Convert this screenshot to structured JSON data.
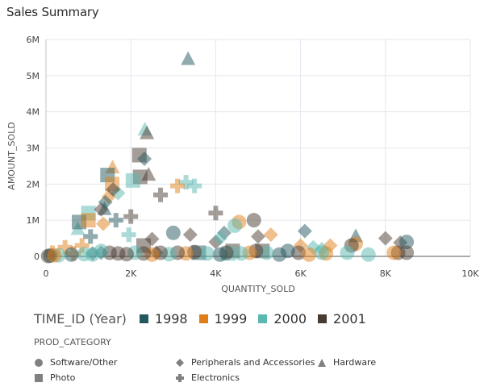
{
  "title": "Sales Summary",
  "chart_data": {
    "type": "scatter",
    "title": "Sales Summary",
    "xlabel": "QUANTITY_SOLD",
    "ylabel": "AMOUNT_SOLD",
    "xlim": [
      0,
      10000
    ],
    "ylim": [
      0,
      6000000
    ],
    "xticks": [
      0,
      2000,
      4000,
      6000,
      8000,
      10000
    ],
    "xtick_labels": [
      "0",
      "2K",
      "4K",
      "6K",
      "8K",
      "10K"
    ],
    "yticks": [
      0,
      1000000,
      2000000,
      3000000,
      4000000,
      5000000,
      6000000
    ],
    "ytick_labels": [
      "0",
      "1M",
      "2M",
      "3M",
      "4M",
      "5M",
      "6M"
    ],
    "grid": true,
    "color_legend": {
      "title": "TIME_ID (Year)",
      "items": [
        {
          "label": "1998",
          "color": "#23585e"
        },
        {
          "label": "1999",
          "color": "#e07f1a"
        },
        {
          "label": "2000",
          "color": "#5ab8b0"
        },
        {
          "label": "2001",
          "color": "#4a3b31"
        }
      ]
    },
    "shape_legend": {
      "title": "PROD_CATEGORY",
      "items": [
        {
          "label": "Software/Other",
          "shape": "circle"
        },
        {
          "label": "Peripherals and Accessories",
          "shape": "diamond"
        },
        {
          "label": "Hardware",
          "shape": "triangle"
        },
        {
          "label": "Photo",
          "shape": "square"
        },
        {
          "label": "Electronics",
          "shape": "cross"
        }
      ]
    },
    "legend_position": "bottom",
    "points": [
      {
        "x": 3350,
        "y": 5450000,
        "year": "1998",
        "category": "Hardware"
      },
      {
        "x": 2330,
        "y": 3500000,
        "year": "2000",
        "category": "Hardware"
      },
      {
        "x": 2380,
        "y": 3400000,
        "year": "2001",
        "category": "Hardware"
      },
      {
        "x": 1570,
        "y": 2450000,
        "year": "1999",
        "category": "Hardware"
      },
      {
        "x": 2420,
        "y": 2250000,
        "year": "2001",
        "category": "Hardware"
      },
      {
        "x": 1380,
        "y": 1300000,
        "year": "1998",
        "category": "Hardware"
      },
      {
        "x": 750,
        "y": 750000,
        "year": "2000",
        "category": "Hardware"
      },
      {
        "x": 7300,
        "y": 550000,
        "year": "1998",
        "category": "Hardware"
      },
      {
        "x": 2200,
        "y": 2800000,
        "year": "2001",
        "category": "Photo"
      },
      {
        "x": 2220,
        "y": 2200000,
        "year": "2001",
        "category": "Photo"
      },
      {
        "x": 2050,
        "y": 2100000,
        "year": "2000",
        "category": "Photo"
      },
      {
        "x": 1450,
        "y": 2250000,
        "year": "1998",
        "category": "Photo"
      },
      {
        "x": 1560,
        "y": 2000000,
        "year": "1999",
        "category": "Photo"
      },
      {
        "x": 1000,
        "y": 1200000,
        "year": "2000",
        "category": "Photo"
      },
      {
        "x": 780,
        "y": 950000,
        "year": "1998",
        "category": "Photo"
      },
      {
        "x": 1000,
        "y": 1000000,
        "year": "1999",
        "category": "Photo"
      },
      {
        "x": 2300,
        "y": 300000,
        "year": "2001",
        "category": "Photo"
      },
      {
        "x": 4400,
        "y": 150000,
        "year": "2001",
        "category": "Photo"
      },
      {
        "x": 5100,
        "y": 150000,
        "year": "2001",
        "category": "Photo"
      },
      {
        "x": 4300,
        "y": 80000,
        "year": "2000",
        "category": "Photo"
      },
      {
        "x": 3600,
        "y": 100000,
        "year": "1998",
        "category": "Photo"
      },
      {
        "x": 2320,
        "y": 2700000,
        "year": "1998",
        "category": "Peripherals and Accessories"
      },
      {
        "x": 1700,
        "y": 1750000,
        "year": "2000",
        "category": "Peripherals and Accessories"
      },
      {
        "x": 1480,
        "y": 1650000,
        "year": "1999",
        "category": "Peripherals and Accessories"
      },
      {
        "x": 1580,
        "y": 1850000,
        "year": "2001",
        "category": "Peripherals and Accessories"
      },
      {
        "x": 1300,
        "y": 1300000,
        "year": "2001",
        "category": "Peripherals and Accessories"
      },
      {
        "x": 1400,
        "y": 1500000,
        "year": "1998",
        "category": "Peripherals and Accessories"
      },
      {
        "x": 1350,
        "y": 900000,
        "year": "1999",
        "category": "Peripherals and Accessories"
      },
      {
        "x": 2500,
        "y": 480000,
        "year": "2001",
        "category": "Peripherals and Accessories"
      },
      {
        "x": 3400,
        "y": 600000,
        "year": "2001",
        "category": "Peripherals and Accessories"
      },
      {
        "x": 4200,
        "y": 650000,
        "year": "1998",
        "category": "Peripherals and Accessories"
      },
      {
        "x": 4000,
        "y": 400000,
        "year": "2001",
        "category": "Peripherals and Accessories"
      },
      {
        "x": 4100,
        "y": 500000,
        "year": "2000",
        "category": "Peripherals and Accessories"
      },
      {
        "x": 6100,
        "y": 700000,
        "year": "1998",
        "category": "Peripherals and Accessories"
      },
      {
        "x": 8000,
        "y": 500000,
        "year": "2001",
        "category": "Peripherals and Accessories"
      },
      {
        "x": 8350,
        "y": 380000,
        "year": "2001",
        "category": "Peripherals and Accessories"
      },
      {
        "x": 5300,
        "y": 600000,
        "year": "1999",
        "category": "Peripherals and Accessories"
      },
      {
        "x": 5000,
        "y": 550000,
        "year": "2001",
        "category": "Peripherals and Accessories"
      },
      {
        "x": 6000,
        "y": 300000,
        "year": "1999",
        "category": "Peripherals and Accessories"
      },
      {
        "x": 6300,
        "y": 250000,
        "year": "2000",
        "category": "Peripherals and Accessories"
      },
      {
        "x": 6500,
        "y": 200000,
        "year": "2000",
        "category": "Peripherals and Accessories"
      },
      {
        "x": 6700,
        "y": 300000,
        "year": "1999",
        "category": "Peripherals and Accessories"
      },
      {
        "x": 1100,
        "y": 80000,
        "year": "1998",
        "category": "Peripherals and Accessories"
      },
      {
        "x": 1300,
        "y": 100000,
        "year": "1998",
        "category": "Peripherals and Accessories"
      },
      {
        "x": 2600,
        "y": 100000,
        "year": "2001",
        "category": "Peripherals and Accessories"
      },
      {
        "x": 3300,
        "y": 2050000,
        "year": "2000",
        "category": "Electronics"
      },
      {
        "x": 3500,
        "y": 1950000,
        "year": "2000",
        "category": "Electronics"
      },
      {
        "x": 3100,
        "y": 1950000,
        "year": "1999",
        "category": "Electronics"
      },
      {
        "x": 2700,
        "y": 1700000,
        "year": "2001",
        "category": "Electronics"
      },
      {
        "x": 2000,
        "y": 1100000,
        "year": "2001",
        "category": "Electronics"
      },
      {
        "x": 1650,
        "y": 1000000,
        "year": "1998",
        "category": "Electronics"
      },
      {
        "x": 4000,
        "y": 1200000,
        "year": "2001",
        "category": "Electronics"
      },
      {
        "x": 1050,
        "y": 550000,
        "year": "1998",
        "category": "Electronics"
      },
      {
        "x": 1950,
        "y": 600000,
        "year": "2000",
        "category": "Electronics"
      },
      {
        "x": 450,
        "y": 250000,
        "year": "1999",
        "category": "Electronics"
      },
      {
        "x": 850,
        "y": 300000,
        "year": "1999",
        "category": "Electronics"
      },
      {
        "x": 150,
        "y": 100000,
        "year": "1999",
        "category": "Electronics"
      },
      {
        "x": 650,
        "y": 80000,
        "year": "1999",
        "category": "Electronics"
      },
      {
        "x": 4900,
        "y": 1000000,
        "year": "2001",
        "category": "Software/Other"
      },
      {
        "x": 4550,
        "y": 950000,
        "year": "1999",
        "category": "Software/Other"
      },
      {
        "x": 4450,
        "y": 850000,
        "year": "2000",
        "category": "Software/Other"
      },
      {
        "x": 3000,
        "y": 650000,
        "year": "1998",
        "category": "Software/Other"
      },
      {
        "x": 8500,
        "y": 400000,
        "year": "1998",
        "category": "Software/Other"
      },
      {
        "x": 7300,
        "y": 350000,
        "year": "1999",
        "category": "Software/Other"
      },
      {
        "x": 7200,
        "y": 300000,
        "year": "2001",
        "category": "Software/Other"
      },
      {
        "x": 8300,
        "y": 100000,
        "year": "2001",
        "category": "Software/Other"
      },
      {
        "x": 8500,
        "y": 100000,
        "year": "2001",
        "category": "Software/Other"
      },
      {
        "x": 8200,
        "y": 100000,
        "year": "1999",
        "category": "Software/Other"
      },
      {
        "x": 7100,
        "y": 100000,
        "year": "2000",
        "category": "Software/Other"
      },
      {
        "x": 7600,
        "y": 50000,
        "year": "2000",
        "category": "Software/Other"
      },
      {
        "x": 6600,
        "y": 80000,
        "year": "1999",
        "category": "Software/Other"
      },
      {
        "x": 6500,
        "y": 100000,
        "year": "2000",
        "category": "Software/Other"
      },
      {
        "x": 5950,
        "y": 100000,
        "year": "2001",
        "category": "Software/Other"
      },
      {
        "x": 5700,
        "y": 150000,
        "year": "1998",
        "category": "Software/Other"
      },
      {
        "x": 5500,
        "y": 50000,
        "year": "1998",
        "category": "Software/Other"
      },
      {
        "x": 6200,
        "y": 50000,
        "year": "1999",
        "category": "Software/Other"
      },
      {
        "x": 5200,
        "y": 100000,
        "year": "2000",
        "category": "Software/Other"
      },
      {
        "x": 4950,
        "y": 150000,
        "year": "2001",
        "category": "Software/Other"
      },
      {
        "x": 4800,
        "y": 100000,
        "year": "1999",
        "category": "Software/Other"
      },
      {
        "x": 4600,
        "y": 80000,
        "year": "2000",
        "category": "Software/Other"
      },
      {
        "x": 4250,
        "y": 100000,
        "year": "2001",
        "category": "Software/Other"
      },
      {
        "x": 4100,
        "y": 50000,
        "year": "1998",
        "category": "Software/Other"
      },
      {
        "x": 3800,
        "y": 80000,
        "year": "2000",
        "category": "Software/Other"
      },
      {
        "x": 3500,
        "y": 120000,
        "year": "2001",
        "category": "Software/Other"
      },
      {
        "x": 3300,
        "y": 80000,
        "year": "1999",
        "category": "Software/Other"
      },
      {
        "x": 3100,
        "y": 100000,
        "year": "2001",
        "category": "Software/Other"
      },
      {
        "x": 2900,
        "y": 60000,
        "year": "2000",
        "category": "Software/Other"
      },
      {
        "x": 2700,
        "y": 100000,
        "year": "2001",
        "category": "Software/Other"
      },
      {
        "x": 2500,
        "y": 50000,
        "year": "1999",
        "category": "Software/Other"
      },
      {
        "x": 2300,
        "y": 80000,
        "year": "2001",
        "category": "Software/Other"
      },
      {
        "x": 2100,
        "y": 100000,
        "year": "2000",
        "category": "Software/Other"
      },
      {
        "x": 1900,
        "y": 60000,
        "year": "2001",
        "category": "Software/Other"
      },
      {
        "x": 1700,
        "y": 80000,
        "year": "2001",
        "category": "Software/Other"
      },
      {
        "x": 1500,
        "y": 100000,
        "year": "2001",
        "category": "Software/Other"
      },
      {
        "x": 1300,
        "y": 150000,
        "year": "2000",
        "category": "Software/Other"
      },
      {
        "x": 1100,
        "y": 50000,
        "year": "2000",
        "category": "Software/Other"
      },
      {
        "x": 900,
        "y": 60000,
        "year": "2000",
        "category": "Software/Other"
      },
      {
        "x": 600,
        "y": 50000,
        "year": "1998",
        "category": "Software/Other"
      },
      {
        "x": 300,
        "y": 30000,
        "year": "2000",
        "category": "Software/Other"
      },
      {
        "x": 100,
        "y": 20000,
        "year": "1998",
        "category": "Software/Other"
      },
      {
        "x": 50,
        "y": 10000,
        "year": "2001",
        "category": "Software/Other"
      },
      {
        "x": 200,
        "y": 30000,
        "year": "1999",
        "category": "Software/Other"
      }
    ]
  }
}
